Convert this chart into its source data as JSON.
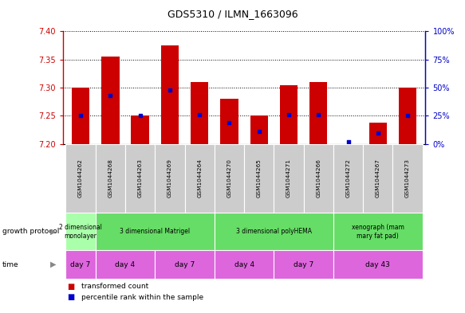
{
  "title": "GDS5310 / ILMN_1663096",
  "samples": [
    "GSM1044262",
    "GSM1044268",
    "GSM1044263",
    "GSM1044269",
    "GSM1044264",
    "GSM1044270",
    "GSM1044265",
    "GSM1044271",
    "GSM1044266",
    "GSM1044272",
    "GSM1044267",
    "GSM1044273"
  ],
  "transformed_count": [
    7.3,
    7.355,
    7.25,
    7.375,
    7.31,
    7.28,
    7.25,
    7.305,
    7.31,
    7.2,
    7.238,
    7.3
  ],
  "percentile_rank": [
    25,
    43,
    25,
    48,
    26,
    19,
    11,
    26,
    26,
    2,
    10,
    25
  ],
  "ylim_left": [
    7.2,
    7.4
  ],
  "ylim_right": [
    0,
    100
  ],
  "yticks_left": [
    7.2,
    7.25,
    7.3,
    7.35,
    7.4
  ],
  "yticks_right": [
    0,
    25,
    50,
    75,
    100
  ],
  "bar_color": "#cc0000",
  "dot_color": "#0000cc",
  "bar_base": 7.2,
  "gp_groups": [
    {
      "label": "2 dimensional\nmonolayer",
      "start": 0,
      "end": 1,
      "color": "#aaffaa"
    },
    {
      "label": "3 dimensional Matrigel",
      "start": 1,
      "end": 5,
      "color": "#66dd66"
    },
    {
      "label": "3 dimensional polyHEMA",
      "start": 5,
      "end": 9,
      "color": "#66dd66"
    },
    {
      "label": "xenograph (mam\nmary fat pad)",
      "start": 9,
      "end": 12,
      "color": "#66dd66"
    }
  ],
  "time_groups": [
    {
      "label": "day 7",
      "start": 0,
      "end": 1
    },
    {
      "label": "day 4",
      "start": 1,
      "end": 3
    },
    {
      "label": "day 7",
      "start": 3,
      "end": 5
    },
    {
      "label": "day 4",
      "start": 5,
      "end": 7
    },
    {
      "label": "day 7",
      "start": 7,
      "end": 9
    },
    {
      "label": "day 43",
      "start": 9,
      "end": 12
    }
  ],
  "sample_bg_color": "#cccccc",
  "left_axis_color": "#cc0000",
  "right_axis_color": "#0000cc",
  "time_color": "#dd66dd",
  "dot_size": 12
}
